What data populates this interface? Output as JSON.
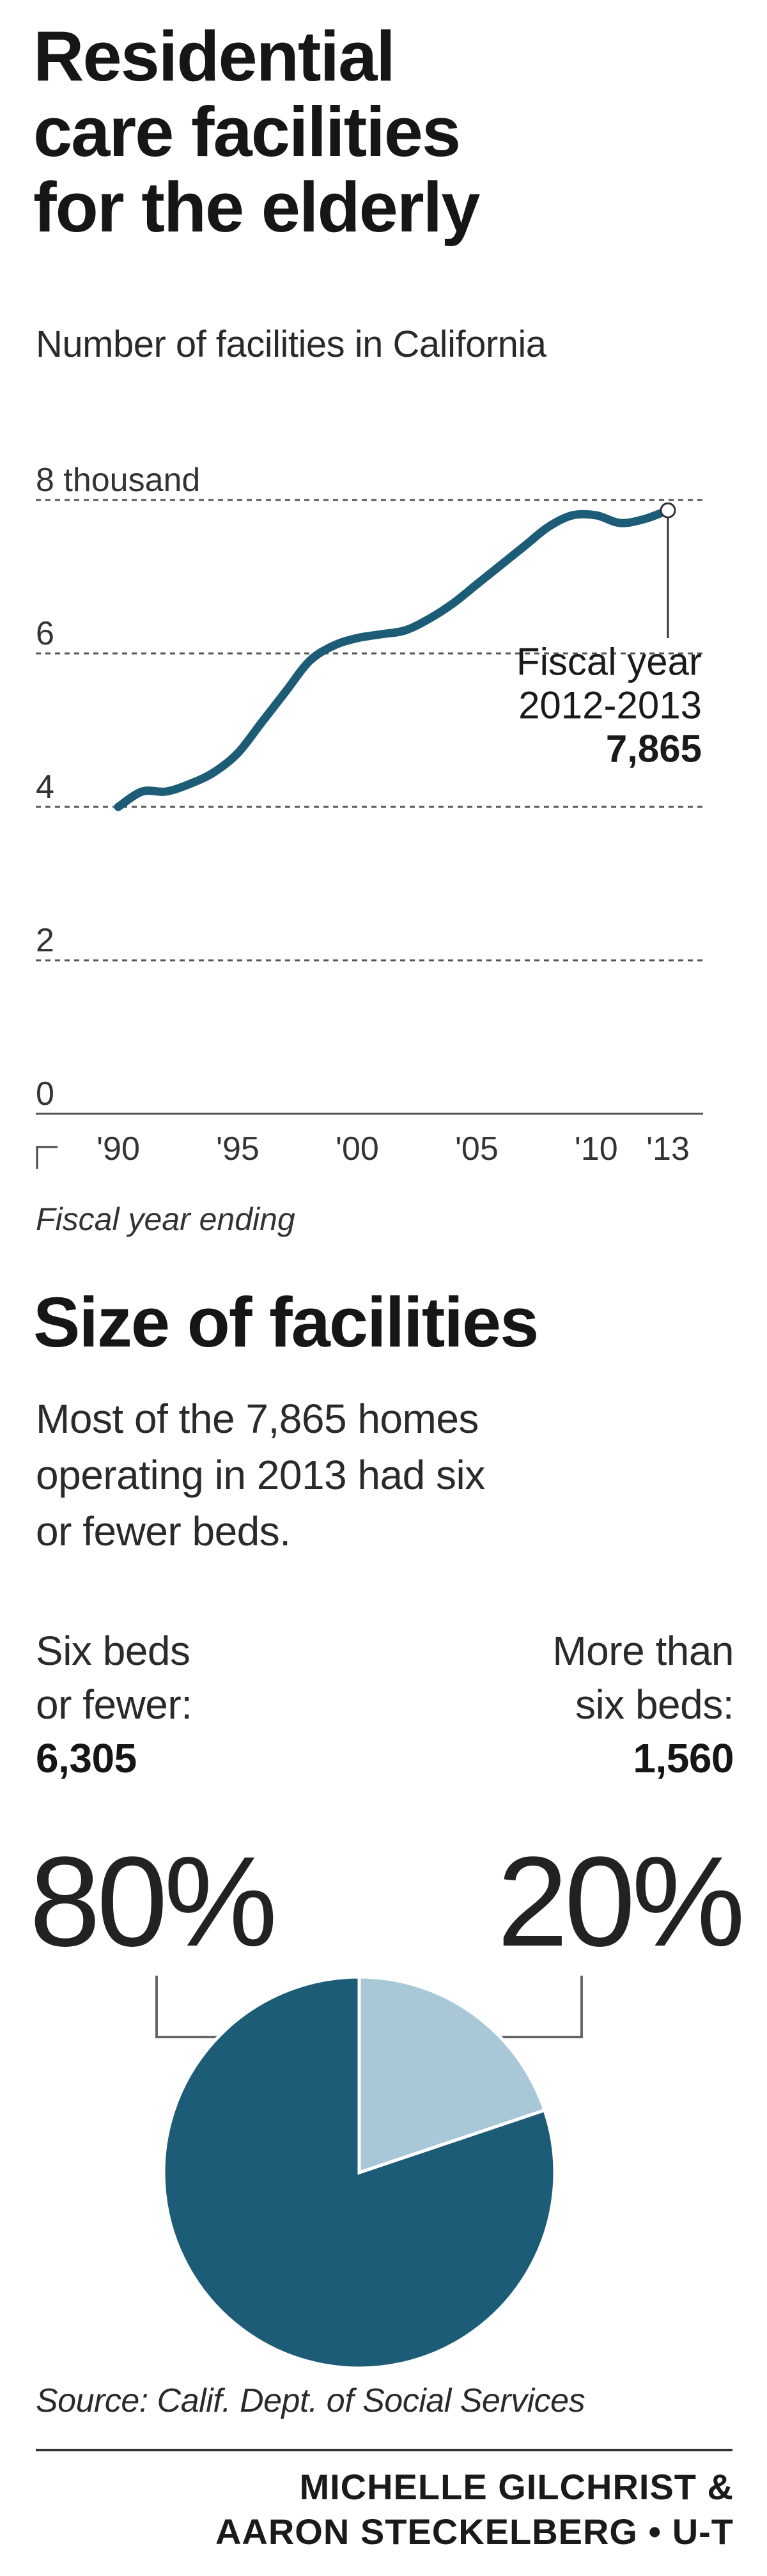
{
  "title_lines": [
    "Residential",
    "care facilities",
    "for the elderly"
  ],
  "subtitle": "Number of facilities in California",
  "colors": {
    "line": "#1d5c76",
    "pie_main": "#1d5c76",
    "pie_minor": "#a8c8d8",
    "grid": "#555555",
    "text": "#222222"
  },
  "chart_data": [
    {
      "type": "line",
      "title": "Residential care facilities for the elderly",
      "subtitle": "Number of facilities in California",
      "ylabel": "",
      "xlabel": "Fiscal year ending",
      "ylim": [
        0,
        8
      ],
      "y_ticks": [
        {
          "value": 8,
          "label": "8 thousand"
        },
        {
          "value": 6,
          "label": "6"
        },
        {
          "value": 4,
          "label": "4"
        },
        {
          "value": 2,
          "label": "2"
        },
        {
          "value": 0,
          "label": "0"
        }
      ],
      "x_ticks": [
        {
          "value": 1990,
          "label": "'90"
        },
        {
          "value": 1995,
          "label": "'95"
        },
        {
          "value": 2000,
          "label": "'00"
        },
        {
          "value": 2005,
          "label": "'05"
        },
        {
          "value": 2010,
          "label": "'10"
        },
        {
          "value": 2013,
          "label": "'13"
        }
      ],
      "xlim": [
        1990,
        2013
      ],
      "x": [
        1990,
        1991,
        1992,
        1993,
        1994,
        1995,
        1996,
        1997,
        1998,
        1999,
        2000,
        2001,
        2002,
        2003,
        2004,
        2005,
        2006,
        2007,
        2008,
        2009,
        2010,
        2011,
        2012,
        2013
      ],
      "values": [
        4.0,
        4.2,
        4.2,
        4.3,
        4.45,
        4.7,
        5.1,
        5.5,
        5.9,
        6.1,
        6.2,
        6.25,
        6.3,
        6.45,
        6.65,
        6.9,
        7.15,
        7.4,
        7.65,
        7.8,
        7.8,
        7.7,
        7.75,
        7.865
      ],
      "grid": true,
      "annotation": {
        "lines": [
          "Fiscal year",
          "2012-2013"
        ],
        "value_label": "7,865",
        "x": 2013,
        "y": 7.865
      }
    },
    {
      "type": "pie",
      "title": "Size of facilities",
      "slices": [
        {
          "label": "Six beds or fewer",
          "value": 6305,
          "percent": 80
        },
        {
          "label": "More than six beds",
          "value": 1560,
          "percent": 20
        }
      ]
    }
  ],
  "section2": {
    "title": "Size of facilities",
    "description_lines": [
      "Most of the 7,865 homes",
      "operating in 2013 had six",
      "or fewer beds."
    ]
  },
  "pie_labels": {
    "left_lines": [
      "Six beds",
      "or fewer:"
    ],
    "left_count": "6,305",
    "left_pct": "80%",
    "right_lines": [
      "More than",
      "six beds:"
    ],
    "right_count": "1,560",
    "right_pct": "20%"
  },
  "source": "Source: Calif. Dept. of Social Services",
  "credit_lines": [
    "MICHELLE GILCHRIST &",
    "AARON STECKELBERG • U-T"
  ]
}
